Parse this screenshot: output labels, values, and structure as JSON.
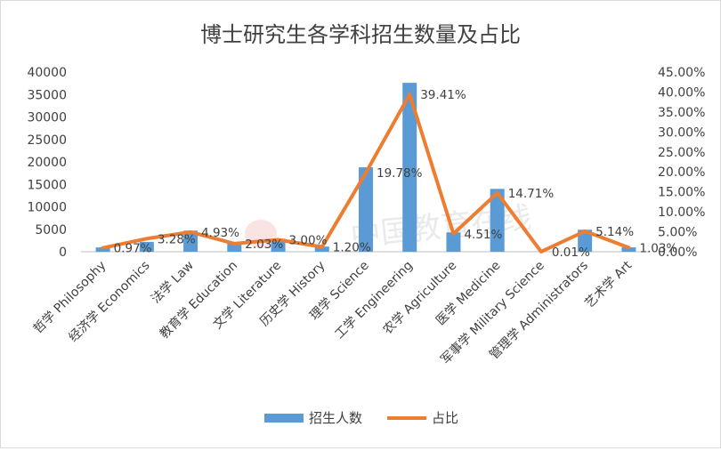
{
  "chart_data": {
    "type": "bar-line-combo",
    "title": "博士研究生各学科招生数量及占比",
    "categories": [
      "哲学 Philosophy",
      "经济学 Economics",
      "法学 Law",
      "教育学 Education",
      "文学 Literature",
      "历史学 History",
      "理学 Science",
      "工学 Engineering",
      "农学 Agriculture",
      "医学 Medicine",
      "军事学 Military Science",
      "管理学 Administrators",
      "艺术学 Art"
    ],
    "series": [
      {
        "name": "招生人数",
        "type": "bar",
        "axis": "left",
        "color": "#5b9bd5",
        "values": [
          960,
          2200,
          4700,
          1950,
          2900,
          1150,
          18800,
          37600,
          4300,
          14000,
          10,
          4900,
          980
        ]
      },
      {
        "name": "占比",
        "type": "line",
        "axis": "right",
        "color": "#ed7d31",
        "values": [
          0.97,
          3.28,
          4.93,
          2.03,
          3.0,
          1.2,
          19.78,
          39.41,
          4.51,
          14.71,
          0.01,
          5.14,
          1.03
        ],
        "labels": [
          "0.97%",
          "3.28%",
          "4.93%",
          "2.03%",
          "3.00%",
          "1.20%",
          "19.78%",
          "39.41%",
          "4.51%",
          "14.71%",
          "0.01%",
          "5.14%",
          "1.03%"
        ]
      }
    ],
    "y_left": {
      "range": [
        0,
        40000
      ],
      "ticks": [
        "0",
        "5000",
        "10000",
        "15000",
        "20000",
        "25000",
        "30000",
        "35000",
        "40000"
      ]
    },
    "y_right": {
      "range": [
        0,
        45
      ],
      "ticks": [
        "0.00%",
        "5.00%",
        "10.00%",
        "15.00%",
        "20.00%",
        "25.00%",
        "30.00%",
        "35.00%",
        "40.00%",
        "45.00%"
      ]
    },
    "grid": false,
    "legend_position": "bottom",
    "watermark": "中国教育在线"
  }
}
